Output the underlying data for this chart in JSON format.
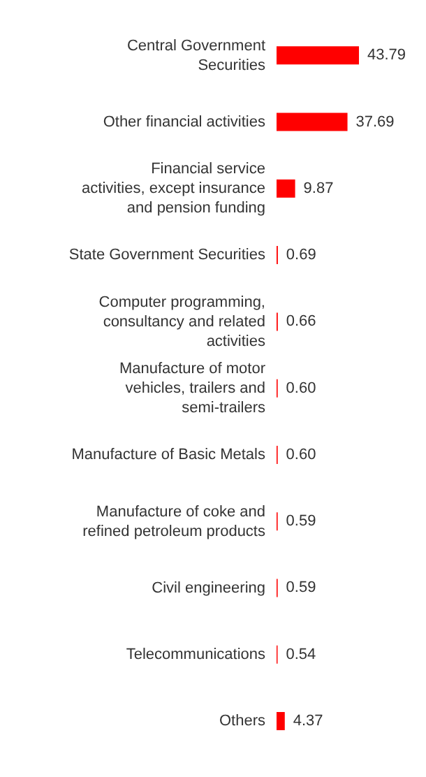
{
  "chart_data": {
    "type": "bar",
    "orientation": "horizontal",
    "categories": [
      "Central Government Securities",
      "Other financial activities",
      "Financial service activities, except insurance and pension funding",
      "State Government Securities",
      "Computer programming, consultancy and related activities",
      "Manufacture of motor vehicles, trailers and semi-trailers",
      "Manufacture of Basic Metals",
      "Manufacture of coke and refined petroleum products",
      "Civil engineering",
      "Telecommunications",
      "Others"
    ],
    "values": [
      43.79,
      37.69,
      9.87,
      0.69,
      0.66,
      0.6,
      0.6,
      0.59,
      0.59,
      0.54,
      4.37
    ],
    "value_labels": [
      "43.79",
      "37.69",
      "9.87",
      "0.69",
      "0.66",
      "0.60",
      "0.60",
      "0.59",
      "0.59",
      "0.54",
      "4.37"
    ],
    "color": "#ff0000"
  }
}
